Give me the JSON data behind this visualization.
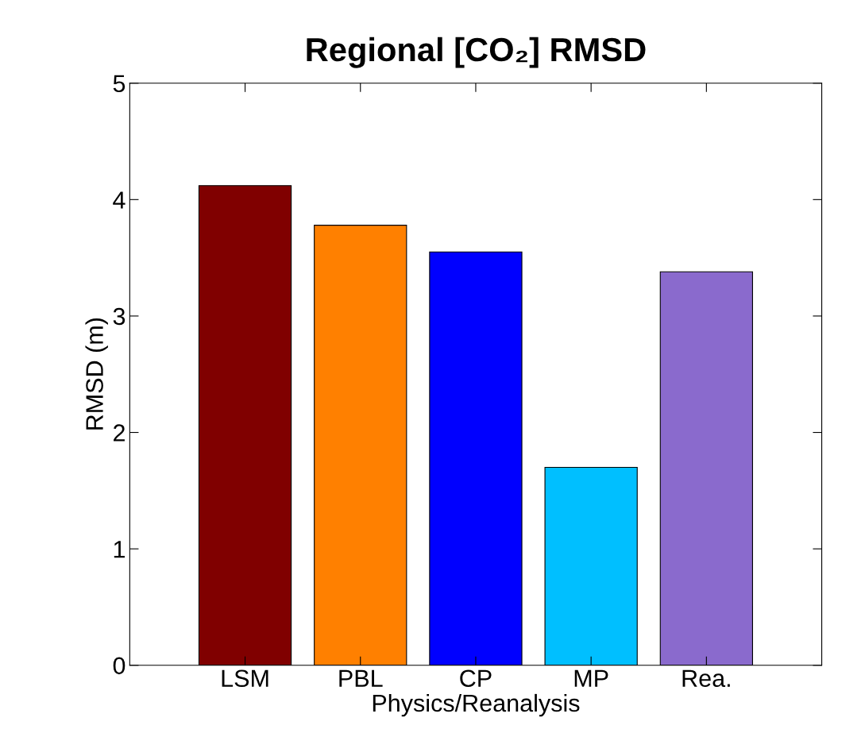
{
  "chart_data": {
    "type": "bar",
    "title": "Regional [CO₂] RMSD",
    "xlabel": "Physics/Reanalysis",
    "ylabel": "RMSD (m)",
    "categories": [
      "LSM",
      "PBL",
      "CP",
      "MP",
      "Rea."
    ],
    "values": [
      4.12,
      3.78,
      3.55,
      1.7,
      3.38
    ],
    "colors": [
      "#800000",
      "#ff8000",
      "#0000ff",
      "#00bfff",
      "#8a6acd"
    ],
    "ylim": [
      0,
      5
    ],
    "yticks": [
      0,
      1,
      2,
      3,
      4,
      5
    ],
    "grid": false,
    "legend": false
  }
}
